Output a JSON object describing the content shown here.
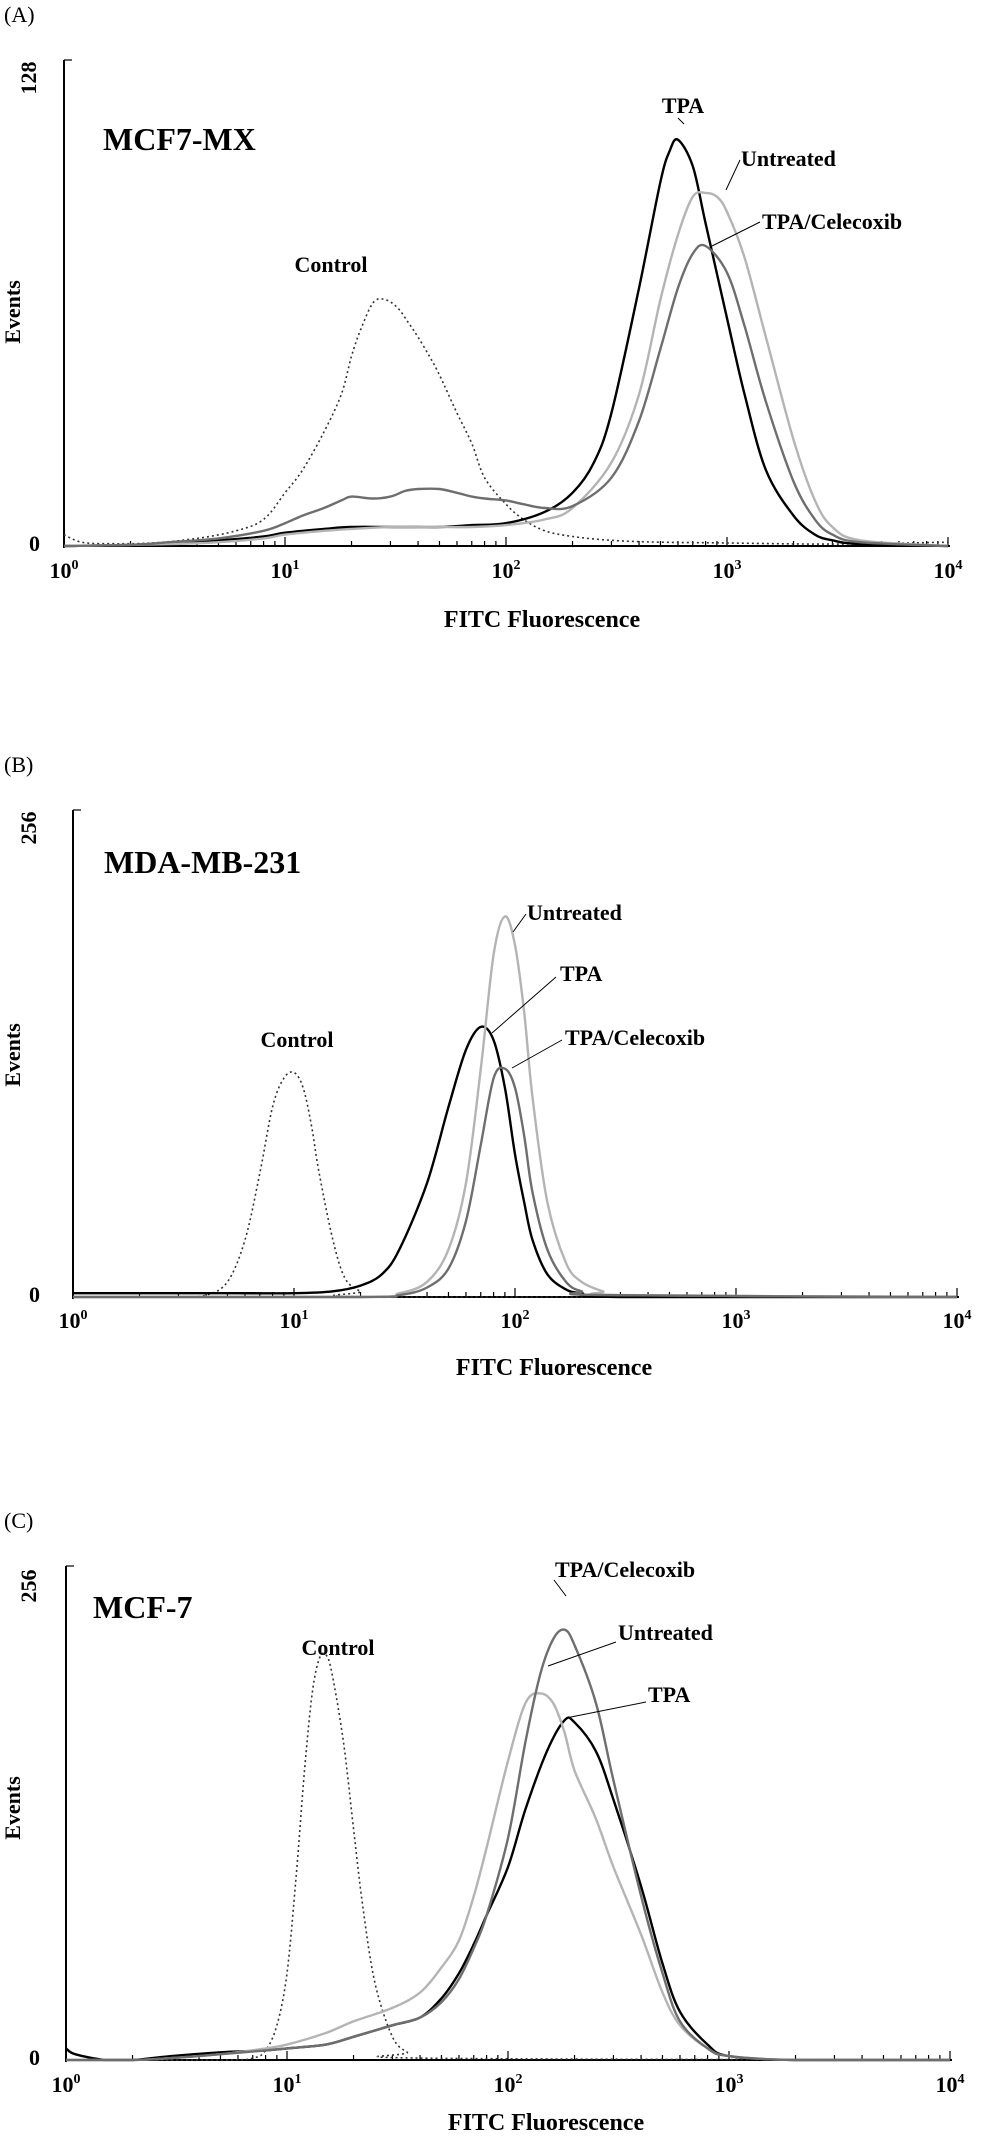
{
  "chart_data": [
    {
      "type": "line",
      "panel_letter": "(A)",
      "title": "MCF7-MX",
      "xlabel": "FITC Fluorescence",
      "ylabel": "Events",
      "x_scale": "log",
      "xlim": [
        1,
        10000
      ],
      "ylim": [
        0,
        128
      ],
      "x_ticks": [
        {
          "base": "10",
          "exp": "0"
        },
        {
          "base": "10",
          "exp": "1"
        },
        {
          "base": "10",
          "exp": "2"
        },
        {
          "base": "10",
          "exp": "3"
        },
        {
          "base": "10",
          "exp": "4"
        }
      ],
      "y_ticks": [
        "0",
        "128"
      ],
      "grid": false,
      "series": [
        {
          "name": "Control",
          "color": "#333333",
          "dash": "dotted",
          "x": [
            1,
            1.2,
            1.6,
            2.5,
            4,
            6,
            8,
            10,
            12,
            15,
            18,
            20,
            22,
            25,
            28,
            32,
            36,
            40,
            45,
            50,
            60,
            70,
            80,
            100,
            120,
            150,
            200,
            300,
            500,
            1000,
            3000,
            10000
          ],
          "y": [
            3,
            1,
            0.6,
            0.8,
            2,
            4,
            7,
            14,
            20,
            30,
            40,
            50,
            57,
            64,
            65,
            63,
            59,
            55,
            50,
            45,
            35,
            27,
            18,
            11,
            7,
            4,
            2.5,
            1.5,
            1,
            0.8,
            0.5,
            1
          ]
        },
        {
          "name": "TPA",
          "color": "#000000",
          "dash": "solid",
          "x": [
            1,
            2,
            3,
            5,
            8,
            10,
            15,
            20,
            30,
            40,
            50,
            70,
            100,
            150,
            200,
            250,
            300,
            400,
            500,
            550,
            600,
            700,
            800,
            1000,
            1200,
            1500,
            2000,
            2500,
            3000,
            4000,
            10000
          ],
          "y": [
            0,
            0.3,
            0.8,
            1.5,
            2.5,
            3.5,
            4.5,
            5,
            5,
            5,
            5,
            5.5,
            6,
            9,
            14,
            22,
            35,
            68,
            96,
            104,
            107,
            100,
            85,
            60,
            40,
            20,
            8,
            3,
            1.5,
            0.5,
            0
          ]
        },
        {
          "name": "Untreated",
          "color": "#b4b4b4",
          "dash": "solid",
          "x": [
            1,
            3,
            5,
            8,
            10,
            15,
            20,
            30,
            40,
            50,
            70,
            100,
            150,
            200,
            300,
            400,
            500,
            600,
            700,
            800,
            900,
            1000,
            1200,
            1500,
            2000,
            2500,
            3000,
            4000,
            10000
          ],
          "y": [
            0,
            0.5,
            1,
            2,
            3,
            4,
            4.5,
            5,
            5,
            5,
            5,
            5.5,
            7,
            10,
            22,
            40,
            65,
            82,
            92,
            93,
            92,
            88,
            76,
            55,
            28,
            12,
            5,
            1.5,
            0
          ]
        },
        {
          "name": "TPA/Celecoxib",
          "color": "#6e6e6e",
          "dash": "solid",
          "x": [
            1,
            2,
            3,
            5,
            8,
            10,
            12,
            15,
            18,
            20,
            25,
            30,
            35,
            40,
            50,
            60,
            70,
            80,
            100,
            120,
            150,
            200,
            300,
            400,
            500,
            600,
            700,
            800,
            1000,
            1200,
            1500,
            2000,
            2500,
            3000,
            4000,
            10000
          ],
          "y": [
            0,
            0.3,
            1,
            2,
            4,
            6,
            8,
            10,
            12,
            13,
            12.5,
            13,
            14.5,
            15,
            15,
            14,
            13,
            12.5,
            12,
            11,
            10,
            10.5,
            18,
            33,
            52,
            68,
            77,
            79,
            72,
            58,
            38,
            17,
            7,
            3,
            1,
            0
          ]
        }
      ],
      "annotations": [
        "Control",
        "TPA",
        "Untreated",
        "TPA/Celecoxib"
      ]
    },
    {
      "type": "line",
      "panel_letter": "(B)",
      "title": "MDA-MB-231",
      "xlabel": "FITC Fluorescence",
      "ylabel": "Events",
      "x_scale": "log",
      "xlim": [
        1,
        10000
      ],
      "ylim": [
        0,
        256
      ],
      "x_ticks": [
        {
          "base": "10",
          "exp": "0"
        },
        {
          "base": "10",
          "exp": "1"
        },
        {
          "base": "10",
          "exp": "2"
        },
        {
          "base": "10",
          "exp": "3"
        },
        {
          "base": "10",
          "exp": "4"
        }
      ],
      "y_ticks": [
        "0",
        "256"
      ],
      "grid": false,
      "series": [
        {
          "name": "Control",
          "color": "#333333",
          "dash": "dotted",
          "x": [
            1,
            3,
            4,
            5,
            6,
            7,
            8,
            9,
            10,
            11,
            12,
            13,
            15,
            17,
            20,
            25,
            10000
          ],
          "y": [
            0,
            0,
            1,
            8,
            30,
            65,
            100,
            115,
            118,
            110,
            90,
            65,
            30,
            10,
            3,
            0,
            0
          ]
        },
        {
          "name": "TPA",
          "color": "#000000",
          "dash": "solid",
          "x": [
            1,
            5,
            10,
            15,
            20,
            25,
            30,
            40,
            50,
            60,
            70,
            80,
            90,
            100,
            110,
            120,
            140,
            170,
            200,
            300,
            10000
          ],
          "y": [
            2,
            2,
            2,
            3,
            6,
            12,
            25,
            60,
            100,
            130,
            142,
            135,
            110,
            75,
            50,
            30,
            12,
            4,
            2,
            0,
            0
          ]
        },
        {
          "name": "Untreated",
          "color": "#b4b4b4",
          "dash": "solid",
          "x": [
            1,
            20,
            30,
            40,
            50,
            60,
            70,
            80,
            90,
            100,
            110,
            120,
            140,
            170,
            200,
            250,
            300,
            10000
          ],
          "y": [
            0,
            0,
            2,
            8,
            25,
            60,
            120,
            180,
            200,
            185,
            150,
            105,
            50,
            18,
            8,
            3,
            1,
            0
          ]
        },
        {
          "name": "TPA/Celecoxib",
          "color": "#6e6e6e",
          "dash": "solid",
          "x": [
            1,
            20,
            30,
            40,
            50,
            60,
            70,
            80,
            90,
            100,
            110,
            120,
            140,
            170,
            200,
            250,
            10000
          ],
          "y": [
            0,
            0,
            1,
            5,
            15,
            40,
            80,
            115,
            120,
            110,
            85,
            55,
            25,
            8,
            3,
            1,
            0
          ]
        }
      ],
      "annotations": [
        "Control",
        "Untreated",
        "TPA",
        "TPA/Celecoxib"
      ]
    },
    {
      "type": "line",
      "panel_letter": "(C)",
      "title": "MCF-7",
      "xlabel": "FITC Fluorescence",
      "ylabel": "Events",
      "x_scale": "log",
      "xlim": [
        1,
        10000
      ],
      "ylim": [
        0,
        256
      ],
      "x_ticks": [
        {
          "base": "10",
          "exp": "0"
        },
        {
          "base": "10",
          "exp": "1"
        },
        {
          "base": "10",
          "exp": "2"
        },
        {
          "base": "10",
          "exp": "3"
        },
        {
          "base": "10",
          "exp": "4"
        }
      ],
      "y_ticks": [
        "0",
        "256"
      ],
      "grid": false,
      "series": [
        {
          "name": "Control",
          "color": "#333333",
          "dash": "dotted",
          "x": [
            1,
            5,
            7,
            8,
            9,
            10,
            11,
            12,
            13,
            14,
            15,
            16,
            18,
            20,
            22,
            25,
            30,
            35,
            40,
            10000
          ],
          "y": [
            0,
            0,
            1,
            5,
            18,
            45,
            95,
            150,
            190,
            208,
            210,
            200,
            165,
            120,
            80,
            40,
            12,
            4,
            1,
            0
          ]
        },
        {
          "name": "TPA",
          "color": "#000000",
          "dash": "solid",
          "x": [
            1,
            1.1,
            1.5,
            2,
            3,
            5,
            8,
            10,
            15,
            20,
            30,
            40,
            50,
            60,
            70,
            80,
            100,
            120,
            150,
            180,
            200,
            250,
            300,
            400,
            500,
            600,
            800,
            1000,
            2000,
            10000
          ],
          "y": [
            6,
            3,
            0,
            0,
            2,
            4,
            5,
            6,
            8,
            12,
            18,
            22,
            32,
            45,
            60,
            75,
            100,
            130,
            160,
            176,
            175,
            160,
            135,
            90,
            50,
            25,
            8,
            2,
            0,
            0
          ]
        },
        {
          "name": "Untreated",
          "color": "#b4b4b4",
          "dash": "solid",
          "x": [
            1,
            2,
            3,
            5,
            8,
            10,
            15,
            20,
            30,
            40,
            50,
            60,
            70,
            80,
            100,
            120,
            140,
            160,
            180,
            200,
            250,
            300,
            400,
            500,
            600,
            800,
            1000,
            2000,
            10000
          ],
          "y": [
            0,
            0,
            1,
            3,
            6,
            8,
            14,
            20,
            27,
            35,
            48,
            62,
            85,
            110,
            155,
            185,
            190,
            185,
            170,
            150,
            125,
            100,
            65,
            35,
            18,
            6,
            2,
            0,
            0
          ]
        },
        {
          "name": "TPA/Celecoxib",
          "color": "#6e6e6e",
          "dash": "solid",
          "x": [
            1,
            2,
            3,
            5,
            8,
            10,
            15,
            20,
            30,
            40,
            50,
            60,
            70,
            80,
            100,
            120,
            140,
            160,
            180,
            200,
            250,
            300,
            400,
            500,
            600,
            800,
            1000,
            2000,
            10000
          ],
          "y": [
            0,
            0,
            1,
            3,
            5,
            6,
            8,
            12,
            18,
            22,
            30,
            42,
            58,
            75,
            115,
            165,
            200,
            218,
            223,
            215,
            185,
            145,
            85,
            45,
            20,
            6,
            2,
            0,
            0
          ]
        }
      ],
      "annotations": [
        "Control",
        "TPA/Celecoxib",
        "Untreated",
        "TPA"
      ]
    }
  ]
}
